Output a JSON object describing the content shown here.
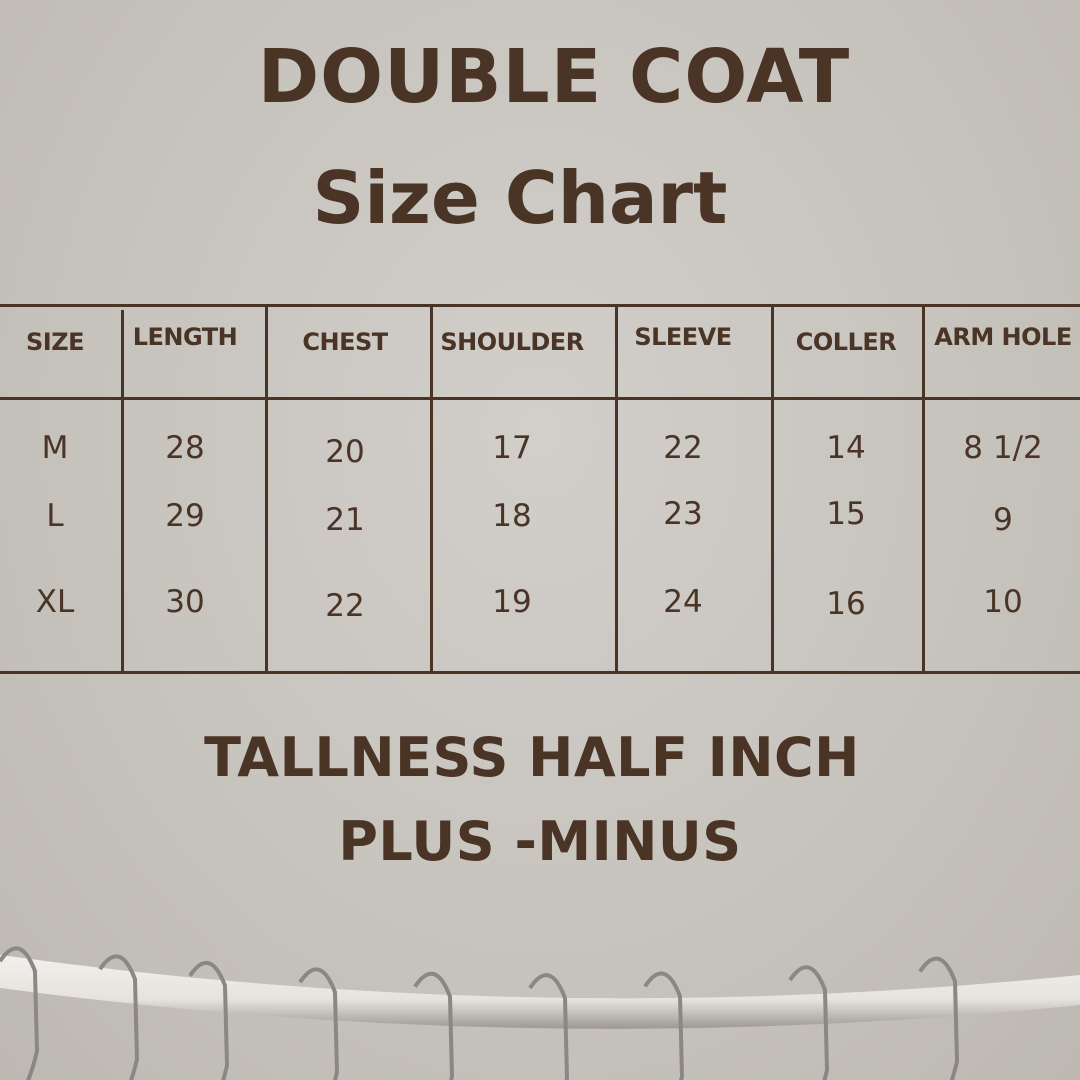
{
  "title": {
    "line1": "DOUBLE COAT",
    "line2": "Size Chart"
  },
  "table": {
    "headers": [
      "SIZE",
      "LENGTH",
      "CHEST",
      "SHOULDER",
      "SLEEVE",
      "COLLER",
      "ARM HOLE"
    ],
    "rows": [
      [
        "M",
        "28",
        "20",
        "17",
        "22",
        "14",
        "8 1/2"
      ],
      [
        "L",
        "29",
        "21",
        "18",
        "23",
        "15",
        "9"
      ],
      [
        "XL",
        "30",
        "22",
        "19",
        "24",
        "16",
        "10"
      ]
    ]
  },
  "note": {
    "line1": "TALLNESS HALF INCH",
    "line2": "PLUS -MINUS"
  },
  "colors": {
    "text": "#4a3426",
    "background": "#c8c4bf"
  }
}
